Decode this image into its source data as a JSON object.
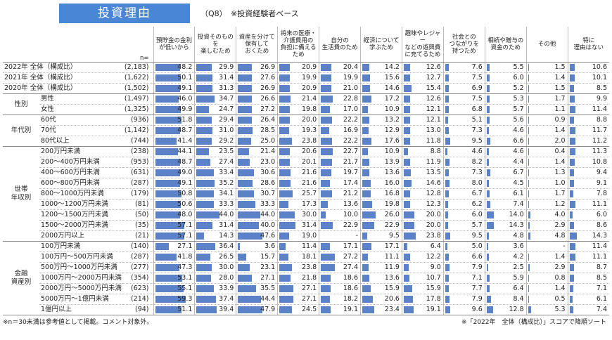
{
  "header": {
    "title": "投資理由",
    "question": "（Q8）",
    "base": "※投資経験者ベース"
  },
  "table": {
    "n_label": "n=",
    "columns": [
      "預貯金の金利\nが低いから",
      "投資そのものを\n楽しむため",
      "資産を分けて\n保有して\nおくため",
      "将来の医療・\n介護費用の\n負担に備える\nため",
      "自分の\n生活費のため",
      "経済について\n学ぶため",
      "趣味やレジャー\nなどの遊興費\nに充てるため",
      "社会との\nつながりを\n持つため",
      "相続や贈与の\n資金のため",
      "その他",
      "特に\n理由はない"
    ],
    "summary_rows": [
      {
        "label": "2022年 全体（構成比）",
        "n": "(2,183)",
        "values": [
          "48.2",
          "29.9",
          "26.9",
          "20.9",
          "20.4",
          "14.2",
          "12.6",
          "7.6",
          "5.5",
          "1.5",
          "10.6"
        ]
      },
      {
        "label": "2021年 全体（構成比）",
        "n": "(1,622)",
        "values": [
          "50.1",
          "31.4",
          "27.6",
          "19.9",
          "19.9",
          "15.6",
          "12.7",
          "7.5",
          "6.0",
          "1.4",
          "10.1"
        ]
      },
      {
        "label": "2020年 全体（構成比）",
        "n": "(1,502)",
        "values": [
          "49.1",
          "31.3",
          "26.9",
          "20.9",
          "21.0",
          "14.6",
          "15.4",
          "6.9",
          "5.2",
          "1.5",
          "8.5"
        ]
      }
    ],
    "groups": [
      {
        "label": "性別",
        "rows": [
          {
            "label": "男性",
            "n": "(1,497)",
            "values": [
              "46.0",
              "34.7",
              "26.6",
              "21.4",
              "22.8",
              "17.2",
              "12.6",
              "7.5",
              "5.3",
              "1.7",
              "9.9"
            ]
          },
          {
            "label": "女性",
            "n": "(1,325)",
            "values": [
              "49.9",
              "24.7",
              "27.2",
              "19.8",
              "17.0",
              "10.9",
              "12.1",
              "6.8",
              "5.7",
              "1.1",
              "11.4"
            ]
          }
        ]
      },
      {
        "label": "年代別",
        "rows": [
          {
            "label": "60代",
            "n": "(936)",
            "values": [
              "51.8",
              "29.4",
              "26.4",
              "20.0",
              "22.2",
              "13.2",
              "12.1",
              "5.1",
              "5.6",
              "0.9",
              "8.8"
            ]
          },
          {
            "label": "70代",
            "n": "(1,142)",
            "values": [
              "48.7",
              "31.0",
              "28.5",
              "19.3",
              "16.9",
              "12.9",
              "13.0",
              "7.3",
              "4.6",
              "1.4",
              "11.7"
            ]
          },
          {
            "label": "80代以上",
            "n": "(744)",
            "values": [
              "41.4",
              "29.2",
              "25.0",
              "23.8",
              "22.2",
              "17.6",
              "11.8",
              "9.5",
              "6.6",
              "2.0",
              "11.2"
            ]
          }
        ]
      },
      {
        "label": "世帯\n年収別",
        "rows": [
          {
            "label": "200万円未満",
            "n": "(238)",
            "values": [
              "44.1",
              "23.5",
              "21.4",
              "20.6",
              "22.7",
              "10.9",
              "8.8",
              "4.6",
              "4.6",
              "0.4",
              "11.3"
            ]
          },
          {
            "label": "200～400万円未満",
            "n": "(953)",
            "values": [
              "48.7",
              "27.4",
              "23.0",
              "20.1",
              "21.7",
              "13.9",
              "11.9",
              "8.2",
              "4.4",
              "1.4",
              "10.8"
            ]
          },
          {
            "label": "400～600万円未満",
            "n": "(631)",
            "values": [
              "49.0",
              "33.4",
              "30.6",
              "21.6",
              "19.7",
              "13.6",
              "13.5",
              "7.3",
              "6.7",
              "1.3",
              "9.4"
            ]
          },
          {
            "label": "600～800万円未満",
            "n": "(287)",
            "values": [
              "49.1",
              "35.2",
              "28.6",
              "21.6",
              "17.4",
              "16.0",
              "14.6",
              "8.0",
              "4.5",
              "1.0",
              "9.1"
            ]
          },
          {
            "label": "800～1000万円未満",
            "n": "(179)",
            "values": [
              "50.8",
              "34.1",
              "30.7",
              "25.7",
              "21.2",
              "16.8",
              "12.8",
              "6.7",
              "6.1",
              "1.7",
              "7.8"
            ]
          },
          {
            "label": "1000～1200万円未満",
            "n": "(81)",
            "values": [
              "50.6",
              "33.3",
              "33.3",
              "17.3",
              "13.6",
              "19.8",
              "12.3",
              "6.2",
              "7.4",
              "1.2",
              "11.1"
            ]
          },
          {
            "label": "1200～1500万円未満",
            "n": "(50)",
            "values": [
              "48.0",
              "44.0",
              "44.0",
              "30.0",
              "10.0",
              "26.0",
              "20.0",
              "6.0",
              "14.0",
              "4.0",
              "6.0"
            ]
          },
          {
            "label": "1500～2000万円未満",
            "n": "(35)",
            "values": [
              "57.1",
              "31.4",
              "40.0",
              "31.4",
              "22.9",
              "22.9",
              "20.0",
              "5.7",
              "14.3",
              "2.9",
              "8.6"
            ]
          },
          {
            "label": "2000万円以上",
            "n": "(21)",
            "values": [
              "57.1",
              "14.3",
              "47.6",
              "19.0",
              "-",
              "9.5",
              "23.8",
              "9.5",
              "4.8",
              "4.8",
              "14.3"
            ]
          }
        ]
      },
      {
        "label": "金融\n資産別",
        "rows": [
          {
            "label": "100万円未満",
            "n": "(140)",
            "values": [
              "27.1",
              "36.4",
              "3.6",
              "11.4",
              "17.1",
              "17.1",
              "6.4",
              "5.0",
              "3.6",
              "-",
              "11.4"
            ]
          },
          {
            "label": "100万円～500万円未満",
            "n": "(287)",
            "values": [
              "41.8",
              "26.5",
              "15.7",
              "18.1",
              "27.2",
              "11.1",
              "12.2",
              "6.6",
              "4.2",
              "1.4",
              "11.1"
            ]
          },
          {
            "label": "500万円～1000万円未満",
            "n": "(277)",
            "values": [
              "47.3",
              "30.0",
              "23.1",
              "23.8",
              "27.4",
              "11.9",
              "9.0",
              "7.9",
              "2.5",
              "2.9",
              "8.7"
            ]
          },
          {
            "label": "1000万円～2000万円未満",
            "n": "(354)",
            "values": [
              "53.1",
              "28.0",
              "27.1",
              "21.8",
              "18.6",
              "13.6",
              "10.7",
              "7.1",
              "5.9",
              "0.8",
              "8.5"
            ]
          },
          {
            "label": "2000万円～5000万円未満",
            "n": "(623)",
            "values": [
              "55.1",
              "33.9",
              "35.5",
              "27.1",
              "18.6",
              "15.9",
              "15.9",
              "7.7",
              "6.4",
              "1.4",
              "7.1"
            ]
          },
          {
            "label": "5000万円～1億円未満",
            "n": "(214)",
            "values": [
              "59.3",
              "37.4",
              "44.4",
              "27.1",
              "18.2",
              "20.6",
              "17.8",
              "7.9",
              "8.4",
              "0.5",
              "6.1"
            ]
          },
          {
            "label": "1億円以上",
            "n": "(94)",
            "values": [
              "51.1",
              "39.4",
              "47.9",
              "24.5",
              "19.1",
              "23.4",
              "19.1",
              "9.6",
              "12.8",
              "5.3",
              "7.4"
            ]
          }
        ]
      }
    ]
  },
  "footer": {
    "note_left": "※n＝30未満は参考値として掲載。コメント対象外。",
    "note_right": "※「2022年　全体（構成比）」スコアで降順ソート"
  }
}
